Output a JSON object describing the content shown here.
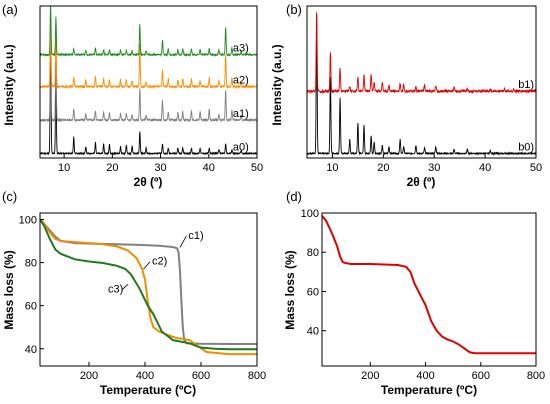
{
  "chart_data": [
    {
      "id": "a",
      "panel_label": "(a)",
      "type": "line",
      "xlabel": "2θ (º)",
      "ylabel": "Intensity (a.u.)",
      "xlim": [
        5,
        50
      ],
      "xticks": [
        10,
        20,
        30,
        40,
        50
      ],
      "ylim": [
        0,
        1
      ],
      "series": [
        {
          "label": "a0)",
          "color": "#000000",
          "baseline": 0.03,
          "scale": 0.9,
          "noise": 0.004,
          "peaks": [
            [
              7.2,
              1.0
            ],
            [
              8.3,
              0.6
            ],
            [
              12.0,
              0.12
            ],
            [
              14.5,
              0.05
            ],
            [
              16.5,
              0.08
            ],
            [
              18.2,
              0.07
            ],
            [
              19.4,
              0.07
            ],
            [
              21.7,
              0.05
            ],
            [
              22.9,
              0.06
            ],
            [
              24.1,
              0.05
            ],
            [
              25.7,
              0.16
            ],
            [
              27.0,
              0.04
            ],
            [
              30.4,
              0.07
            ],
            [
              31.6,
              0.04
            ],
            [
              33.6,
              0.04
            ],
            [
              34.6,
              0.04
            ],
            [
              36.4,
              0.04
            ],
            [
              38.2,
              0.04
            ],
            [
              40.1,
              0.04
            ],
            [
              42.1,
              0.03
            ],
            [
              43.5,
              0.07
            ],
            [
              44.8,
              0.03
            ],
            [
              46.7,
              0.02
            ]
          ]
        },
        {
          "label": "a1)",
          "color": "#808080",
          "baseline": 0.25,
          "scale": 0.7,
          "noise": 0.006,
          "peaks": [
            [
              7.2,
              1.0
            ],
            [
              8.3,
              0.55
            ],
            [
              12.0,
              0.1
            ],
            [
              14.5,
              0.06
            ],
            [
              16.5,
              0.09
            ],
            [
              18.2,
              0.08
            ],
            [
              19.4,
              0.07
            ],
            [
              21.7,
              0.06
            ],
            [
              22.9,
              0.06
            ],
            [
              24.1,
              0.05
            ],
            [
              25.7,
              0.3
            ],
            [
              27.0,
              0.05
            ],
            [
              30.4,
              0.18
            ],
            [
              31.6,
              0.08
            ],
            [
              33.6,
              0.07
            ],
            [
              34.6,
              0.08
            ],
            [
              36.4,
              0.08
            ],
            [
              38.2,
              0.08
            ],
            [
              40.1,
              0.1
            ],
            [
              42.1,
              0.06
            ],
            [
              43.5,
              0.28
            ],
            [
              44.8,
              0.1
            ],
            [
              46.7,
              0.05
            ]
          ]
        },
        {
          "label": "a2)",
          "color": "#FF8C00",
          "baseline": 0.47,
          "scale": 0.5,
          "noise": 0.006,
          "peaks": [
            [
              7.2,
              1.0
            ],
            [
              8.3,
              0.7
            ],
            [
              12.0,
              0.12
            ],
            [
              14.5,
              0.08
            ],
            [
              16.5,
              0.14
            ],
            [
              18.2,
              0.1
            ],
            [
              19.4,
              0.09
            ],
            [
              21.7,
              0.09
            ],
            [
              22.9,
              0.09
            ],
            [
              24.1,
              0.08
            ],
            [
              25.7,
              0.55
            ],
            [
              27.0,
              0.07
            ],
            [
              30.4,
              0.22
            ],
            [
              31.6,
              0.1
            ],
            [
              33.6,
              0.09
            ],
            [
              34.6,
              0.1
            ],
            [
              36.4,
              0.1
            ],
            [
              38.2,
              0.08
            ],
            [
              40.1,
              0.11
            ],
            [
              42.1,
              0.08
            ],
            [
              43.5,
              0.42
            ],
            [
              44.8,
              0.12
            ],
            [
              46.7,
              0.06
            ]
          ]
        },
        {
          "label": "a3)",
          "color": "#1E8B1E",
          "baseline": 0.68,
          "scale": 0.33,
          "noise": 0.005,
          "peaks": [
            [
              7.2,
              1.0
            ],
            [
              8.3,
              0.75
            ],
            [
              12.0,
              0.12
            ],
            [
              14.5,
              0.08
            ],
            [
              16.5,
              0.14
            ],
            [
              18.2,
              0.1
            ],
            [
              19.4,
              0.09
            ],
            [
              21.7,
              0.09
            ],
            [
              22.9,
              0.09
            ],
            [
              24.1,
              0.08
            ],
            [
              25.7,
              0.6
            ],
            [
              27.0,
              0.07
            ],
            [
              30.4,
              0.3
            ],
            [
              31.6,
              0.12
            ],
            [
              33.6,
              0.1
            ],
            [
              34.6,
              0.12
            ],
            [
              36.4,
              0.12
            ],
            [
              38.2,
              0.1
            ],
            [
              40.1,
              0.13
            ],
            [
              42.1,
              0.09
            ],
            [
              43.5,
              0.55
            ],
            [
              44.8,
              0.14
            ],
            [
              46.7,
              0.07
            ]
          ]
        }
      ]
    },
    {
      "id": "b",
      "panel_label": "(b)",
      "type": "line",
      "xlabel": "2θ (º)",
      "ylabel": "Intensity (a.u.)",
      "xlim": [
        5,
        50
      ],
      "xticks": [
        10,
        20,
        30,
        40,
        50
      ],
      "ylim": [
        0,
        1
      ],
      "series": [
        {
          "label": "b0)",
          "color": "#000000",
          "baseline": 0.03,
          "scale": 0.92,
          "noise": 0.004,
          "peaks": [
            [
              6.9,
              1.0
            ],
            [
              9.6,
              0.55
            ],
            [
              11.5,
              0.4
            ],
            [
              13.4,
              0.1
            ],
            [
              15.0,
              0.22
            ],
            [
              16.2,
              0.2
            ],
            [
              17.6,
              0.13
            ],
            [
              18.2,
              0.08
            ],
            [
              19.8,
              0.06
            ],
            [
              21.1,
              0.05
            ],
            [
              23.3,
              0.1
            ],
            [
              24.0,
              0.05
            ],
            [
              26.4,
              0.06
            ],
            [
              28.1,
              0.04
            ],
            [
              30.3,
              0.05
            ],
            [
              33.9,
              0.03
            ],
            [
              36.5,
              0.03
            ],
            [
              41.0,
              0.02
            ]
          ]
        },
        {
          "label": "b1)",
          "color": "#E00000",
          "baseline": 0.44,
          "scale": 0.52,
          "noise": 0.008,
          "peaks": [
            [
              6.9,
              1.0
            ],
            [
              9.6,
              0.5
            ],
            [
              11.5,
              0.3
            ],
            [
              13.4,
              0.05
            ],
            [
              15.0,
              0.18
            ],
            [
              16.2,
              0.2
            ],
            [
              17.6,
              0.22
            ],
            [
              18.2,
              0.12
            ],
            [
              19.8,
              0.12
            ],
            [
              21.1,
              0.08
            ],
            [
              23.3,
              0.1
            ],
            [
              24.0,
              0.1
            ],
            [
              26.4,
              0.06
            ],
            [
              28.1,
              0.08
            ],
            [
              30.3,
              0.07
            ],
            [
              33.9,
              0.04
            ],
            [
              36.5,
              0.03
            ],
            [
              41.0,
              0.03
            ],
            [
              43.8,
              0.03
            ],
            [
              45.6,
              0.02
            ]
          ]
        }
      ]
    },
    {
      "id": "c",
      "panel_label": "(c)",
      "type": "line",
      "xlabel": "Temperature (ºC)",
      "ylabel": "Mass loss (%)",
      "xlim": [
        25,
        800
      ],
      "xticks": [
        200,
        400,
        600,
        800
      ],
      "ylim": [
        32,
        103
      ],
      "yticks": [
        40,
        60,
        80,
        100
      ],
      "series": [
        {
          "label": "c1)",
          "color": "#808080",
          "x": [
            25,
            40,
            60,
            80,
            100,
            150,
            200,
            300,
            400,
            450,
            500,
            515,
            520,
            525,
            530,
            535,
            540,
            550,
            600,
            700,
            800
          ],
          "y": [
            100,
            98,
            95,
            92,
            90,
            89,
            88.8,
            88.5,
            88.1,
            87.8,
            87.2,
            86.6,
            84.5,
            76,
            62,
            50,
            44,
            42.5,
            42.3,
            42.2,
            42.2
          ]
        },
        {
          "label": "c2)",
          "color": "#F08C00",
          "x": [
            25,
            40,
            60,
            80,
            100,
            150,
            200,
            250,
            300,
            340,
            370,
            390,
            400,
            410,
            420,
            430,
            450,
            480,
            500,
            520,
            540,
            560,
            580,
            620,
            700,
            800
          ],
          "y": [
            100,
            98,
            94,
            91,
            90,
            89.5,
            89,
            88.5,
            87.5,
            85.5,
            82,
            77,
            72,
            62,
            54,
            50,
            48,
            46.5,
            45.5,
            44.8,
            44.5,
            44,
            42,
            38.5,
            37.5,
            37.5
          ]
        },
        {
          "label": "c3)",
          "color": "#1E7A1E",
          "x": [
            25,
            40,
            60,
            80,
            100,
            150,
            200,
            250,
            300,
            330,
            350,
            380,
            410,
            430,
            460,
            500,
            540,
            560,
            580,
            600,
            650,
            700,
            800
          ],
          "y": [
            100,
            97,
            91,
            86,
            84,
            81.5,
            80.5,
            79.8,
            78.5,
            77,
            74.5,
            68,
            60,
            56,
            48,
            44,
            43,
            42.5,
            41.5,
            40.5,
            40,
            39.8,
            39.8
          ]
        }
      ],
      "annotations": [
        {
          "text": "c1)",
          "x": 555,
          "y": 91,
          "tx": 525,
          "ty": 87
        },
        {
          "text": "c2)",
          "x": 425,
          "y": 79,
          "tx": 395,
          "ty": 77
        },
        {
          "text": "c3)",
          "x": 268,
          "y": 66,
          "tx": 340,
          "ty": 70
        }
      ]
    },
    {
      "id": "d",
      "panel_label": "(d)",
      "type": "line",
      "xlabel": "Temperature (ºC)",
      "ylabel": "Mass loss (%)",
      "xlim": [
        25,
        800
      ],
      "xticks": [
        200,
        400,
        600,
        800
      ],
      "ylim": [
        22,
        100
      ],
      "yticks": [
        40,
        60,
        80,
        100
      ],
      "series": [
        {
          "label": "",
          "color": "#E00000",
          "x": [
            25,
            40,
            60,
            80,
            90,
            100,
            110,
            130,
            200,
            300,
            330,
            345,
            360,
            380,
            400,
            420,
            440,
            460,
            480,
            500,
            520,
            540,
            560,
            580,
            650,
            700,
            800
          ],
          "y": [
            98.5,
            96,
            90,
            83,
            78,
            75,
            74.5,
            74,
            74,
            73.5,
            72.5,
            70,
            64,
            58.5,
            53,
            45,
            40,
            37,
            35.5,
            34.5,
            33,
            31,
            29,
            28.5,
            28.5,
            28.5,
            28.5
          ]
        }
      ]
    }
  ]
}
